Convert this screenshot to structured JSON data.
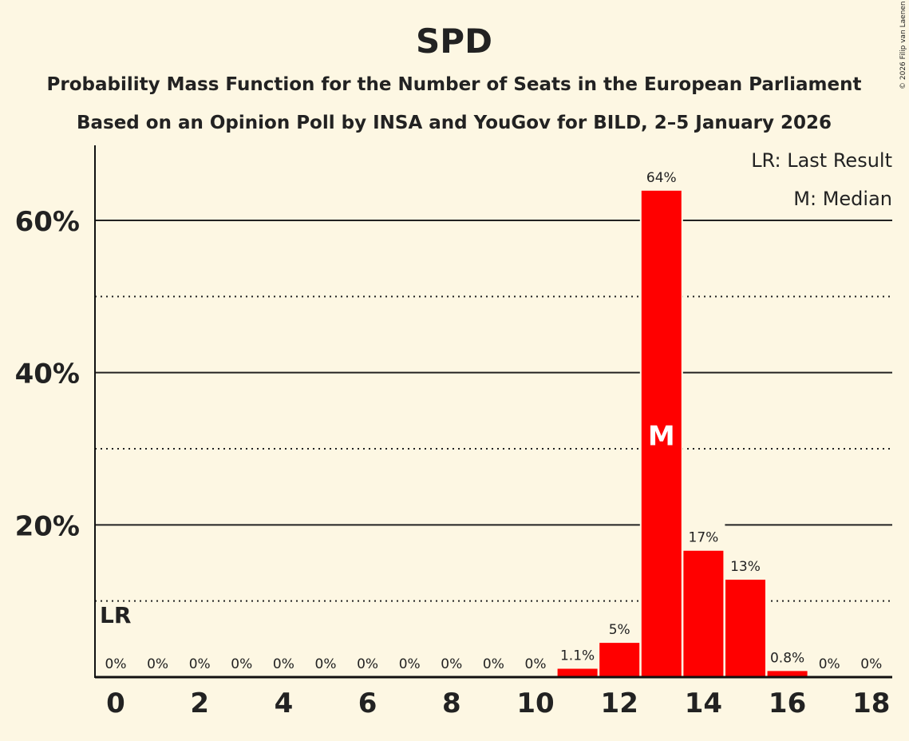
{
  "chart_data": {
    "type": "bar",
    "title": "SPD",
    "subtitle": "Probability Mass Function for the Number of Seats in the European Parliament",
    "subtitle2": "Based on an Opinion Poll by INSA and YouGov for BILD, 2–5 January 2026",
    "copyright": "© 2026 Filip van Laenen",
    "x": [
      0,
      1,
      2,
      3,
      4,
      5,
      6,
      7,
      8,
      9,
      10,
      11,
      12,
      13,
      14,
      15,
      16,
      17,
      18
    ],
    "values": [
      0,
      0,
      0,
      0,
      0,
      0,
      0,
      0,
      0,
      0,
      0,
      1.1,
      4.5,
      63.9,
      16.6,
      12.8,
      0.8,
      0,
      0
    ],
    "value_labels": [
      "0%",
      "0%",
      "0%",
      "0%",
      "0%",
      "0%",
      "0%",
      "0%",
      "0%",
      "0%",
      "0%",
      "1.1%",
      "5%",
      "64%",
      "17%",
      "13%",
      "0.8%",
      "0%",
      "0%"
    ],
    "x_tick_labels": [
      "0",
      "2",
      "4",
      "6",
      "8",
      "10",
      "12",
      "14",
      "16",
      "18"
    ],
    "x_ticks": [
      0,
      2,
      4,
      6,
      8,
      10,
      12,
      14,
      16,
      18
    ],
    "y_ticks": [
      20,
      40,
      60
    ],
    "y_tick_labels": [
      "20%",
      "40%",
      "60%"
    ],
    "y_minor_ticks": [
      10,
      30,
      50
    ],
    "ylim": [
      0,
      70
    ],
    "grid": true,
    "bar_color": "#ff0000",
    "last_result_seat": 0,
    "last_result_marker": "LR",
    "median_seat": 13,
    "median_marker": "M",
    "legend": [
      "LR: Last Result",
      "M: Median"
    ],
    "legend_position": "top-right"
  }
}
